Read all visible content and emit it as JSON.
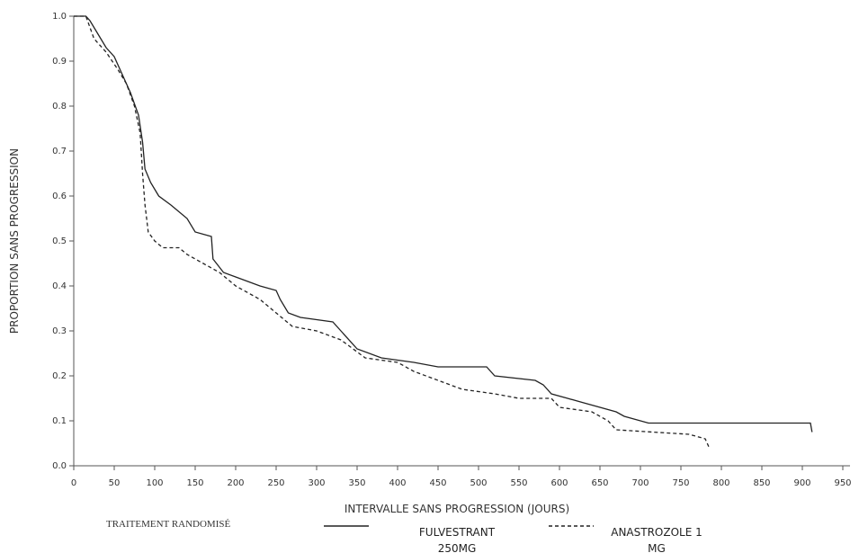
{
  "chart_data": {
    "type": "line",
    "xlabel": "INTERVALLE SANS PROGRESSION (JOURS)",
    "ylabel": "PROPORTION SANS PROGRESSION",
    "legend_title": "TRAITEMENT RANDOMISÉ",
    "xlim": [
      0,
      950
    ],
    "xticks": [
      0,
      50,
      100,
      150,
      200,
      250,
      300,
      350,
      400,
      450,
      500,
      550,
      600,
      650,
      700,
      750,
      800,
      850,
      900,
      950
    ],
    "ylim": [
      0,
      1
    ],
    "yticks": [
      {
        "value": 0,
        "label": "0.0"
      },
      0.1,
      0.2,
      0.3,
      0.4,
      0.5,
      0.6,
      0.7,
      0.8,
      0.9,
      {
        "value": 1,
        "label": "1.0"
      }
    ],
    "series": [
      {
        "name": "FULVESTRANT 250MG",
        "color": "#222222",
        "dash": "none",
        "x": [
          0,
          15,
          20,
          30,
          40,
          50,
          60,
          70,
          80,
          85,
          88,
          95,
          105,
          120,
          140,
          150,
          170,
          172,
          185,
          200,
          230,
          250,
          255,
          265,
          280,
          320,
          330,
          350,
          380,
          420,
          450,
          510,
          520,
          570,
          580,
          590,
          610,
          630,
          670,
          680,
          710,
          910,
          912
        ],
        "values": [
          1,
          1,
          0.99,
          0.96,
          0.93,
          0.91,
          0.87,
          0.83,
          0.78,
          0.72,
          0.66,
          0.63,
          0.6,
          0.58,
          0.55,
          0.52,
          0.51,
          0.46,
          0.43,
          0.42,
          0.4,
          0.39,
          0.37,
          0.34,
          0.33,
          0.32,
          0.3,
          0.26,
          0.24,
          0.23,
          0.22,
          0.22,
          0.2,
          0.19,
          0.18,
          0.16,
          0.15,
          0.14,
          0.12,
          0.11,
          0.095,
          0.095,
          0.075
        ]
      },
      {
        "name": "ANASTROZOLE 1 MG",
        "color": "#222222",
        "dash": "4 3",
        "x": [
          0,
          15,
          25,
          40,
          55,
          65,
          75,
          82,
          85,
          88,
          92,
          100,
          110,
          130,
          140,
          160,
          180,
          200,
          230,
          250,
          270,
          300,
          330,
          360,
          400,
          420,
          450,
          480,
          520,
          550,
          590,
          600,
          640,
          660,
          670,
          760,
          780,
          785
        ],
        "values": [
          1,
          1,
          0.95,
          0.92,
          0.88,
          0.85,
          0.8,
          0.74,
          0.65,
          0.58,
          0.52,
          0.5,
          0.485,
          0.485,
          0.47,
          0.45,
          0.43,
          0.4,
          0.37,
          0.34,
          0.31,
          0.3,
          0.28,
          0.24,
          0.23,
          0.21,
          0.19,
          0.17,
          0.16,
          0.15,
          0.15,
          0.13,
          0.12,
          0.1,
          0.08,
          0.07,
          0.06,
          0.04
        ]
      }
    ]
  }
}
